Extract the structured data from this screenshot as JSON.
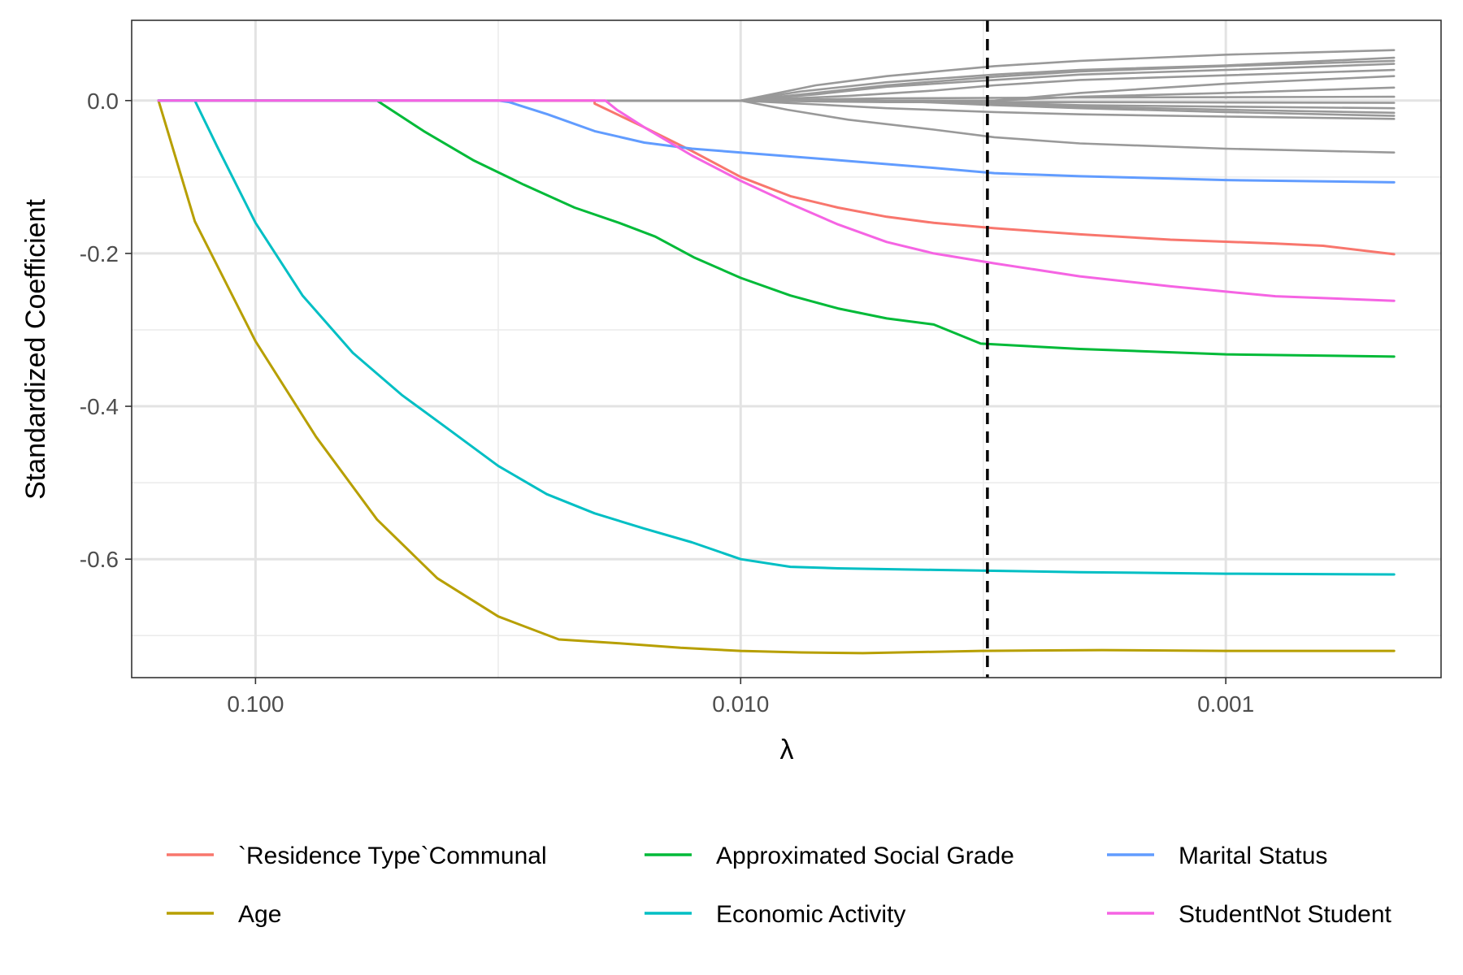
{
  "chart_data": {
    "type": "line",
    "title": "",
    "xlabel": "λ",
    "ylabel": "Standardized Coefficient",
    "x_scale": "log10-reversed",
    "xlim": [
      0.18,
      0.00036
    ],
    "ylim": [
      -0.755,
      0.105
    ],
    "grid": true,
    "legend_position": "bottom",
    "x_ticks": [
      {
        "value": 0.1,
        "label": "0.100"
      },
      {
        "value": 0.01,
        "label": "0.010"
      },
      {
        "value": 0.001,
        "label": "0.001"
      }
    ],
    "x_minor_ticks": [
      0.0316,
      0.00316
    ],
    "y_ticks": [
      {
        "value": 0.0,
        "label": "0.0"
      },
      {
        "value": -0.2,
        "label": "-0.2"
      },
      {
        "value": -0.4,
        "label": "-0.4"
      },
      {
        "value": -0.6,
        "label": "-0.6"
      }
    ],
    "y_minor_ticks": [
      -0.1,
      -0.3,
      -0.5,
      -0.7
    ],
    "reference_line": {
      "x": 0.0031,
      "style": "dashed",
      "color": "#000000"
    },
    "series": [
      {
        "name": "`Residence Type`Communal",
        "color": "#F8766D",
        "points": [
          [
            0.1585,
            0
          ],
          [
            0.02,
            0
          ],
          [
            0.02,
            -0.004
          ],
          [
            0.0158,
            -0.035
          ],
          [
            0.0126,
            -0.066
          ],
          [
            0.01,
            -0.1
          ],
          [
            0.0079,
            -0.125
          ],
          [
            0.0063,
            -0.14
          ],
          [
            0.005,
            -0.152
          ],
          [
            0.004,
            -0.16
          ],
          [
            0.003,
            -0.167
          ],
          [
            0.002,
            -0.175
          ],
          [
            0.0013,
            -0.182
          ],
          [
            0.00079,
            -0.187
          ],
          [
            0.00063,
            -0.19
          ],
          [
            0.00045,
            -0.201
          ]
        ]
      },
      {
        "name": "Age",
        "color": "#B79F00",
        "points": [
          [
            0.1585,
            0
          ],
          [
            0.1334,
            -0.158
          ],
          [
            0.1,
            -0.315
          ],
          [
            0.075,
            -0.44
          ],
          [
            0.0562,
            -0.548
          ],
          [
            0.0422,
            -0.625
          ],
          [
            0.0316,
            -0.675
          ],
          [
            0.0237,
            -0.705
          ],
          [
            0.0178,
            -0.71
          ],
          [
            0.0133,
            -0.716
          ],
          [
            0.01,
            -0.72
          ],
          [
            0.0075,
            -0.722
          ],
          [
            0.0056,
            -0.723
          ],
          [
            0.0032,
            -0.72
          ],
          [
            0.0018,
            -0.719
          ],
          [
            0.001,
            -0.72
          ],
          [
            0.00045,
            -0.72
          ]
        ]
      },
      {
        "name": "Approximated Social Grade",
        "color": "#00BA38",
        "points": [
          [
            0.1585,
            0
          ],
          [
            0.0562,
            0
          ],
          [
            0.045,
            -0.04
          ],
          [
            0.0356,
            -0.078
          ],
          [
            0.028,
            -0.11
          ],
          [
            0.022,
            -0.14
          ],
          [
            0.0178,
            -0.16
          ],
          [
            0.015,
            -0.178
          ],
          [
            0.0125,
            -0.205
          ],
          [
            0.01,
            -0.232
          ],
          [
            0.0079,
            -0.255
          ],
          [
            0.0063,
            -0.272
          ],
          [
            0.005,
            -0.285
          ],
          [
            0.004,
            -0.293
          ],
          [
            0.0032,
            -0.318
          ],
          [
            0.002,
            -0.325
          ],
          [
            0.001,
            -0.332
          ],
          [
            0.00045,
            -0.335
          ]
        ]
      },
      {
        "name": "Economic Activity",
        "color": "#00BFC4",
        "points": [
          [
            0.1585,
            0
          ],
          [
            0.1334,
            0
          ],
          [
            0.12,
            -0.06
          ],
          [
            0.1,
            -0.16
          ],
          [
            0.08,
            -0.255
          ],
          [
            0.063,
            -0.33
          ],
          [
            0.05,
            -0.385
          ],
          [
            0.04,
            -0.43
          ],
          [
            0.0316,
            -0.478
          ],
          [
            0.0251,
            -0.515
          ],
          [
            0.02,
            -0.54
          ],
          [
            0.0158,
            -0.56
          ],
          [
            0.0126,
            -0.578
          ],
          [
            0.01,
            -0.6
          ],
          [
            0.0079,
            -0.61
          ],
          [
            0.0063,
            -0.612
          ],
          [
            0.004,
            -0.614
          ],
          [
            0.002,
            -0.617
          ],
          [
            0.001,
            -0.619
          ],
          [
            0.00045,
            -0.62
          ]
        ]
      },
      {
        "name": "Marital Status",
        "color": "#619CFF",
        "points": [
          [
            0.1585,
            0
          ],
          [
            0.0316,
            0
          ],
          [
            0.03,
            -0.002
          ],
          [
            0.025,
            -0.018
          ],
          [
            0.02,
            -0.04
          ],
          [
            0.0158,
            -0.055
          ],
          [
            0.0126,
            -0.063
          ],
          [
            0.01,
            -0.068
          ],
          [
            0.0063,
            -0.078
          ],
          [
            0.004,
            -0.088
          ],
          [
            0.003,
            -0.095
          ],
          [
            0.002,
            -0.099
          ],
          [
            0.0013,
            -0.102
          ],
          [
            0.001,
            -0.104
          ],
          [
            0.00045,
            -0.107
          ]
        ]
      },
      {
        "name": "StudentNot Student",
        "color": "#F564E3",
        "points": [
          [
            0.1585,
            0
          ],
          [
            0.019,
            0
          ],
          [
            0.018,
            -0.012
          ],
          [
            0.0158,
            -0.035
          ],
          [
            0.0126,
            -0.072
          ],
          [
            0.01,
            -0.105
          ],
          [
            0.0079,
            -0.135
          ],
          [
            0.0063,
            -0.162
          ],
          [
            0.005,
            -0.185
          ],
          [
            0.004,
            -0.2
          ],
          [
            0.003,
            -0.213
          ],
          [
            0.002,
            -0.23
          ],
          [
            0.0013,
            -0.243
          ],
          [
            0.001,
            -0.25
          ],
          [
            0.00079,
            -0.256
          ],
          [
            0.00045,
            -0.262
          ]
        ]
      },
      {
        "name": "",
        "color": "#999999",
        "points": [
          [
            0.1585,
            0
          ],
          [
            0.01,
            0
          ],
          [
            0.007,
            0.02
          ],
          [
            0.005,
            0.032
          ],
          [
            0.003,
            0.045
          ],
          [
            0.002,
            0.052
          ],
          [
            0.001,
            0.06
          ],
          [
            0.00045,
            0.066
          ]
        ]
      },
      {
        "name": "",
        "color": "#999999",
        "points": [
          [
            0.1585,
            0
          ],
          [
            0.01,
            0
          ],
          [
            0.0075,
            0.012
          ],
          [
            0.005,
            0.024
          ],
          [
            0.003,
            0.034
          ],
          [
            0.002,
            0.04
          ],
          [
            0.001,
            0.046
          ],
          [
            0.00045,
            0.056
          ]
        ]
      },
      {
        "name": "",
        "color": "#999999",
        "points": [
          [
            0.1585,
            0
          ],
          [
            0.01,
            0
          ],
          [
            0.007,
            0.01
          ],
          [
            0.005,
            0.02
          ],
          [
            0.003,
            0.031
          ],
          [
            0.002,
            0.038
          ],
          [
            0.001,
            0.045
          ],
          [
            0.00045,
            0.052
          ]
        ]
      },
      {
        "name": "",
        "color": "#999999",
        "points": [
          [
            0.1585,
            0
          ],
          [
            0.01,
            0
          ],
          [
            0.007,
            0.008
          ],
          [
            0.005,
            0.018
          ],
          [
            0.003,
            0.027
          ],
          [
            0.002,
            0.034
          ],
          [
            0.001,
            0.04
          ],
          [
            0.00045,
            0.048
          ]
        ]
      },
      {
        "name": "",
        "color": "#999999",
        "points": [
          [
            0.1585,
            0
          ],
          [
            0.01,
            0
          ],
          [
            0.006,
            0.006
          ],
          [
            0.004,
            0.013
          ],
          [
            0.003,
            0.02
          ],
          [
            0.002,
            0.027
          ],
          [
            0.001,
            0.033
          ],
          [
            0.00045,
            0.04
          ]
        ]
      },
      {
        "name": "",
        "color": "#999999",
        "points": [
          [
            0.1585,
            0
          ],
          [
            0.003,
            0
          ],
          [
            0.002,
            0.01
          ],
          [
            0.001,
            0.022
          ],
          [
            0.00045,
            0.032
          ]
        ]
      },
      {
        "name": "",
        "color": "#999999",
        "points": [
          [
            0.1585,
            0
          ],
          [
            0.003,
            0
          ],
          [
            0.002,
            0.005
          ],
          [
            0.001,
            0.01
          ],
          [
            0.00045,
            0.017
          ]
        ]
      },
      {
        "name": "",
        "color": "#999999",
        "points": [
          [
            0.1585,
            0
          ],
          [
            0.01,
            0
          ],
          [
            0.005,
            0.003
          ],
          [
            0.002,
            0.004
          ],
          [
            0.00045,
            0.005
          ]
        ]
      },
      {
        "name": "",
        "color": "#999999",
        "points": [
          [
            0.1585,
            0
          ],
          [
            0.01,
            0
          ],
          [
            0.005,
            -0.002
          ],
          [
            0.002,
            -0.002
          ],
          [
            0.00045,
            -0.003
          ]
        ]
      },
      {
        "name": "",
        "color": "#999999",
        "points": [
          [
            0.1585,
            0
          ],
          [
            0.005,
            0
          ],
          [
            0.003,
            -0.003
          ],
          [
            0.002,
            -0.006
          ],
          [
            0.001,
            -0.008
          ],
          [
            0.00045,
            -0.01
          ]
        ]
      },
      {
        "name": "",
        "color": "#999999",
        "points": [
          [
            0.1585,
            0
          ],
          [
            0.005,
            0
          ],
          [
            0.003,
            -0.004
          ],
          [
            0.002,
            -0.008
          ],
          [
            0.001,
            -0.012
          ],
          [
            0.00045,
            -0.016
          ]
        ]
      },
      {
        "name": "",
        "color": "#999999",
        "points": [
          [
            0.1585,
            0
          ],
          [
            0.005,
            0
          ],
          [
            0.003,
            -0.006
          ],
          [
            0.002,
            -0.01
          ],
          [
            0.001,
            -0.015
          ],
          [
            0.00045,
            -0.02
          ]
        ]
      },
      {
        "name": "",
        "color": "#999999",
        "points": [
          [
            0.1585,
            0
          ],
          [
            0.01,
            0
          ],
          [
            0.007,
            -0.005
          ],
          [
            0.005,
            -0.01
          ],
          [
            0.003,
            -0.015
          ],
          [
            0.002,
            -0.018
          ],
          [
            0.001,
            -0.021
          ],
          [
            0.00045,
            -0.024
          ]
        ]
      },
      {
        "name": "",
        "color": "#999999",
        "points": [
          [
            0.1585,
            0
          ],
          [
            0.01,
            0
          ],
          [
            0.008,
            -0.012
          ],
          [
            0.006,
            -0.025
          ],
          [
            0.004,
            -0.038
          ],
          [
            0.003,
            -0.048
          ],
          [
            0.002,
            -0.056
          ],
          [
            0.001,
            -0.063
          ],
          [
            0.00045,
            -0.068
          ]
        ]
      }
    ],
    "legend": [
      {
        "label": "`Residence Type`Communal",
        "color": "#F8766D"
      },
      {
        "label": "Approximated Social Grade",
        "color": "#00BA38"
      },
      {
        "label": "Marital Status",
        "color": "#619CFF"
      },
      {
        "label": "Age",
        "color": "#B79F00"
      },
      {
        "label": "Economic Activity",
        "color": "#00BFC4"
      },
      {
        "label": "StudentNot Student",
        "color": "#F564E3"
      }
    ]
  }
}
